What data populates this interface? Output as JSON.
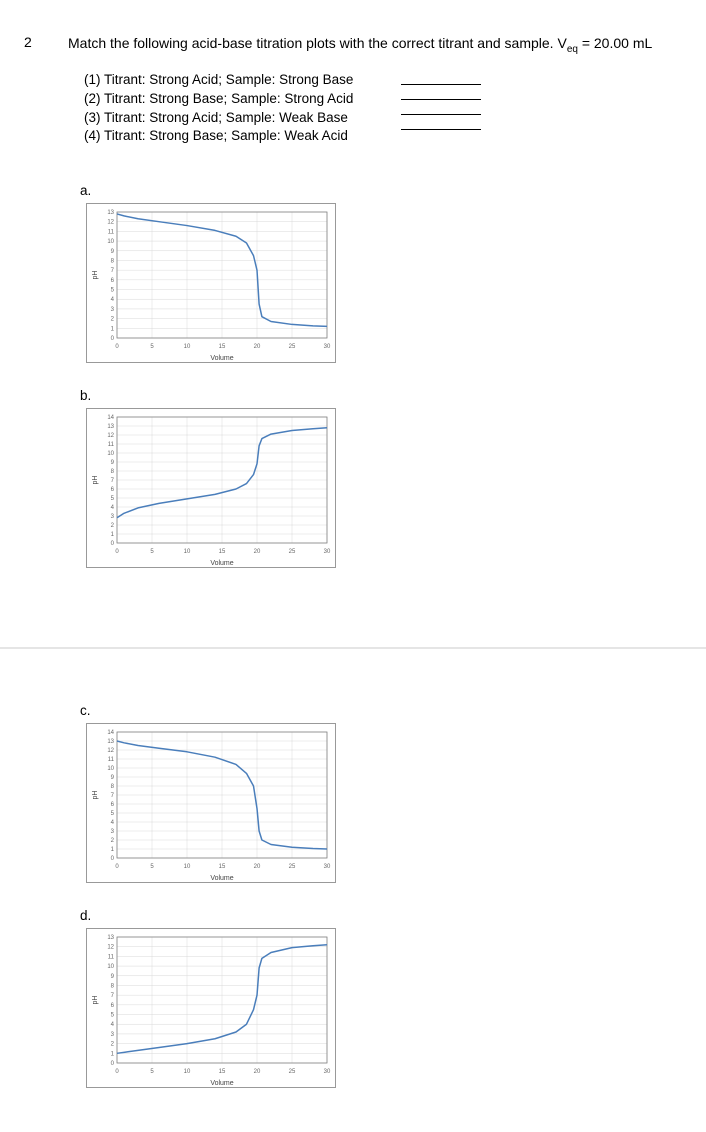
{
  "question": {
    "number": "2",
    "prompt_prefix": "Match the following acid-base titration plots with the correct titrant and sample. V",
    "prompt_sub": "eq",
    "prompt_suffix": " = 20.00 mL",
    "options": [
      "(1)  Titrant: Strong Acid; Sample: Strong Base",
      "(2)  Titrant: Strong Base; Sample: Strong Acid",
      "(3)  Titrant: Strong Acid; Sample: Weak Base",
      "(4)  Titrant: Strong Base; Sample: Weak Acid"
    ]
  },
  "charts": [
    {
      "label": "a.",
      "xlabel": "Volume",
      "ylabel": "pH",
      "xmin": 0,
      "xmax": 30,
      "xtick_step": 5,
      "ymin": 0,
      "ymax": 13,
      "ytick_step": 1,
      "line_color": "#4a7ebb",
      "grid_color": "#d9d9d9",
      "axis_color": "#808080",
      "tick_fontsize": 6,
      "label_fontsize": 7,
      "points": [
        [
          0,
          12.8
        ],
        [
          1,
          12.6
        ],
        [
          3,
          12.3
        ],
        [
          6,
          12.0
        ],
        [
          10,
          11.6
        ],
        [
          14,
          11.1
        ],
        [
          17,
          10.5
        ],
        [
          18.5,
          9.8
        ],
        [
          19.5,
          8.5
        ],
        [
          20,
          7.0
        ],
        [
          20.3,
          3.5
        ],
        [
          20.7,
          2.2
        ],
        [
          22,
          1.7
        ],
        [
          25,
          1.4
        ],
        [
          28,
          1.25
        ],
        [
          30,
          1.2
        ]
      ]
    },
    {
      "label": "b.",
      "xlabel": "Volume",
      "ylabel": "pH",
      "xmin": 0,
      "xmax": 30,
      "xtick_step": 5,
      "ymin": 0,
      "ymax": 14,
      "ytick_step": 1,
      "line_color": "#4a7ebb",
      "grid_color": "#d9d9d9",
      "axis_color": "#808080",
      "tick_fontsize": 6,
      "label_fontsize": 7,
      "points": [
        [
          0,
          2.8
        ],
        [
          1,
          3.3
        ],
        [
          3,
          3.9
        ],
        [
          6,
          4.4
        ],
        [
          10,
          4.9
        ],
        [
          14,
          5.4
        ],
        [
          17,
          6.0
        ],
        [
          18.5,
          6.6
        ],
        [
          19.5,
          7.6
        ],
        [
          20,
          8.8
        ],
        [
          20.3,
          10.8
        ],
        [
          20.7,
          11.6
        ],
        [
          22,
          12.1
        ],
        [
          25,
          12.5
        ],
        [
          28,
          12.7
        ],
        [
          30,
          12.8
        ]
      ]
    },
    {
      "label": "c.",
      "xlabel": "Volume",
      "ylabel": "pH",
      "xmin": 0,
      "xmax": 30,
      "xtick_step": 5,
      "ymin": 0,
      "ymax": 14,
      "ytick_step": 1,
      "line_color": "#4a7ebb",
      "grid_color": "#d9d9d9",
      "axis_color": "#808080",
      "tick_fontsize": 6,
      "label_fontsize": 7,
      "points": [
        [
          0,
          13.0
        ],
        [
          1,
          12.8
        ],
        [
          3,
          12.5
        ],
        [
          6,
          12.2
        ],
        [
          10,
          11.8
        ],
        [
          14,
          11.2
        ],
        [
          17,
          10.4
        ],
        [
          18.5,
          9.4
        ],
        [
          19.5,
          8.0
        ],
        [
          20,
          5.5
        ],
        [
          20.3,
          3.0
        ],
        [
          20.7,
          2.0
        ],
        [
          22,
          1.5
        ],
        [
          25,
          1.2
        ],
        [
          28,
          1.05
        ],
        [
          30,
          1.0
        ]
      ]
    },
    {
      "label": "d.",
      "xlabel": "Volume",
      "ylabel": "pH",
      "xmin": 0,
      "xmax": 30,
      "xtick_step": 5,
      "ymin": 0,
      "ymax": 13,
      "ytick_step": 1,
      "line_color": "#4a7ebb",
      "grid_color": "#d9d9d9",
      "axis_color": "#808080",
      "tick_fontsize": 6,
      "label_fontsize": 7,
      "points": [
        [
          0,
          1.0
        ],
        [
          1,
          1.1
        ],
        [
          3,
          1.3
        ],
        [
          6,
          1.6
        ],
        [
          10,
          2.0
        ],
        [
          14,
          2.5
        ],
        [
          17,
          3.2
        ],
        [
          18.5,
          4.0
        ],
        [
          19.5,
          5.5
        ],
        [
          20,
          7.0
        ],
        [
          20.3,
          9.8
        ],
        [
          20.7,
          10.8
        ],
        [
          22,
          11.4
        ],
        [
          25,
          11.9
        ],
        [
          28,
          12.1
        ],
        [
          30,
          12.2
        ]
      ]
    }
  ]
}
